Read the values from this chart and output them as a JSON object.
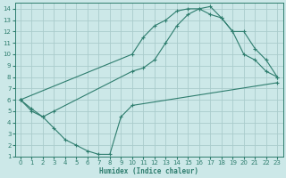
{
  "background_color": "#cce8e8",
  "grid_color": "#aacccc",
  "line_color": "#2e7d6e",
  "xlabel": "Humidex (Indice chaleur)",
  "xlim": [
    -0.5,
    23.5
  ],
  "ylim": [
    1,
    14.5
  ],
  "xticks": [
    0,
    1,
    2,
    3,
    4,
    5,
    6,
    7,
    8,
    9,
    10,
    11,
    12,
    13,
    14,
    15,
    16,
    17,
    18,
    19,
    20,
    21,
    22,
    23
  ],
  "yticks": [
    1,
    2,
    3,
    4,
    5,
    6,
    7,
    8,
    9,
    10,
    11,
    12,
    13,
    14
  ],
  "curve1_x": [
    0,
    10,
    11,
    12,
    13,
    14,
    15,
    16,
    17,
    18,
    19,
    20,
    21,
    22,
    23
  ],
  "curve1_y": [
    6,
    10,
    11.5,
    12.5,
    13,
    13.8,
    14,
    14,
    13.5,
    13.2,
    12,
    10,
    9.5,
    8.5,
    8
  ],
  "curve2_x": [
    0,
    1,
    2,
    3,
    10,
    11,
    12,
    13,
    14,
    15,
    16,
    17,
    18,
    19,
    20,
    21,
    22,
    23
  ],
  "curve2_y": [
    6,
    5.2,
    4.5,
    5,
    8.5,
    8.8,
    9.5,
    11,
    12.5,
    13.5,
    14,
    14.2,
    13.2,
    12,
    12,
    10.5,
    9.5,
    8
  ],
  "curve3_x": [
    0,
    1,
    2,
    3,
    4,
    5,
    6,
    7,
    8,
    9,
    10,
    23
  ],
  "curve3_y": [
    6,
    5,
    4.5,
    3.5,
    2.5,
    2,
    1.5,
    1.2,
    1.2,
    4.5,
    5.5,
    7.5
  ]
}
